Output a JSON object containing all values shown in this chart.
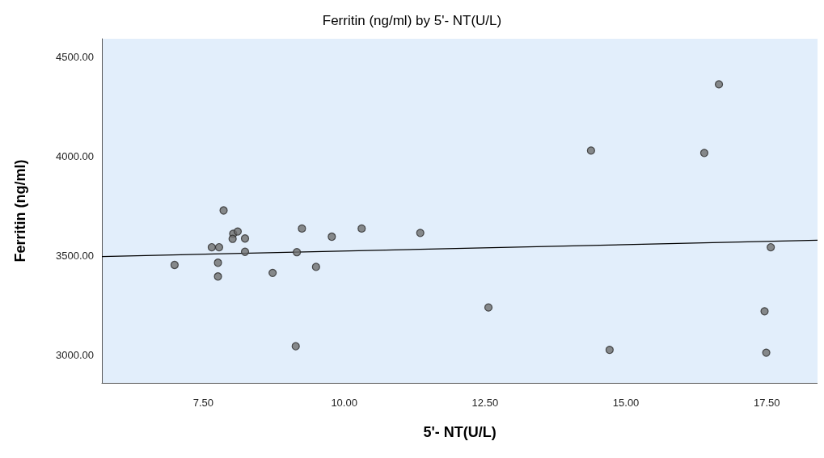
{
  "chart_data": {
    "type": "scatter",
    "title": "Ferritin (ng/ml) by 5'- NT(U/L)",
    "xlabel": "5'- NT(U/L)",
    "ylabel": "Ferritin (ng/ml)",
    "xlim": [
      5.7,
      18.4
    ],
    "ylim": [
      2860,
      4590
    ],
    "xticks": [
      {
        "value": 7.5,
        "label": "7.50"
      },
      {
        "value": 10,
        "label": "10.00"
      },
      {
        "value": 12.5,
        "label": "12.50"
      },
      {
        "value": 15,
        "label": "15.00"
      },
      {
        "value": 17.5,
        "label": "17.50"
      }
    ],
    "yticks": [
      {
        "value": 3000,
        "label": "3000.00"
      },
      {
        "value": 3500,
        "label": "3500.00"
      },
      {
        "value": 4000,
        "label": "4000.00"
      },
      {
        "value": 4500,
        "label": "4500.00"
      }
    ],
    "grid": false,
    "marker": "circle",
    "series": [
      {
        "color": "#6e6e6e",
        "x": [
          6.99,
          7.86,
          7.65,
          7.78,
          7.76,
          7.76,
          8.03,
          8.11,
          8.02,
          8.24,
          8.24,
          8.73,
          9.14,
          9.16,
          9.25,
          9.5,
          9.78,
          10.31,
          11.35,
          12.56,
          16.65,
          14.38,
          16.39,
          17.57,
          17.46,
          14.71,
          17.49
        ],
        "values": [
          3453,
          3727,
          3542,
          3542,
          3464,
          3395,
          3610,
          3621,
          3584,
          3586,
          3519,
          3413,
          3044,
          3517,
          3636,
          3443,
          3595,
          3636,
          3614,
          3239,
          4361,
          4028,
          4016,
          3542,
          3220,
          3026,
          3012
        ]
      },
      {
        "type": "line",
        "color": "#000000",
        "marker": "none",
        "line_style": "solid",
        "x": [
          5.7,
          18.4
        ],
        "values": [
          3495,
          3577
        ]
      }
    ]
  }
}
